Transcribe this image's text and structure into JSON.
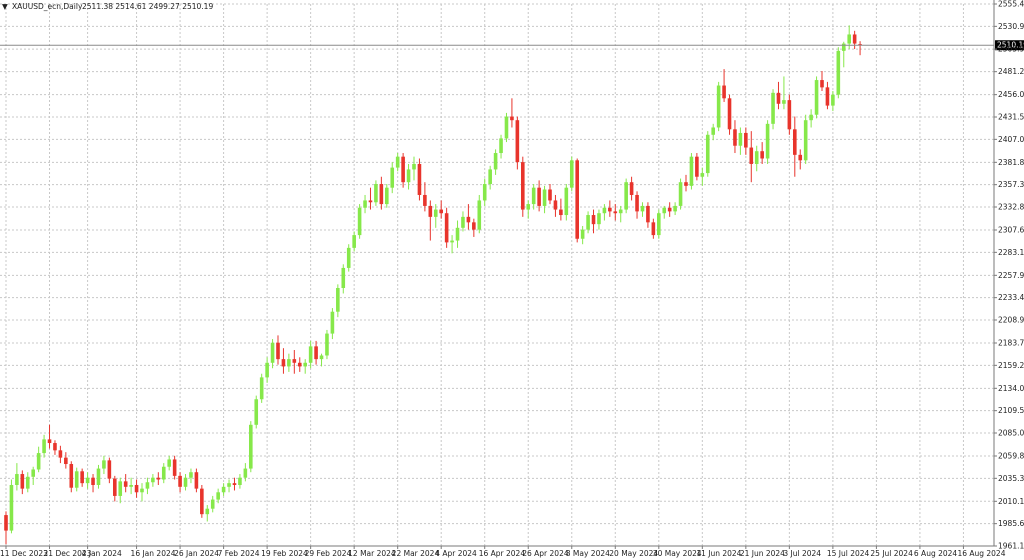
{
  "header": {
    "arrow": "▼",
    "symbol": "XAUUSD_ecn,Daily",
    "ohlc": "2511.38 2514.61 2499.27 2510.19"
  },
  "colors": {
    "bull": "#86e84a",
    "bear": "#e8342c",
    "grid": "#c8c8c8",
    "axis": "#7a7a7a",
    "price_line": "#8a8a8a",
    "tag_bg": "#000000"
  },
  "chart_data": {
    "type": "candlestick",
    "symbol": "XAUUSD_ecn",
    "timeframe": "Daily",
    "last_price": "2510.19",
    "ylim": [
      1961.1,
      2555.4
    ],
    "grid": true,
    "y_ticks": [
      "2555.40",
      "2530.90",
      "2505.90",
      "2481.20",
      "2456.00",
      "2431.50",
      "2407.00",
      "2381.80",
      "2357.30",
      "2332.80",
      "2307.60",
      "2283.10",
      "2257.90",
      "2233.40",
      "2208.90",
      "2183.70",
      "2159.20",
      "2134.00",
      "2109.50",
      "2085.00",
      "2059.80",
      "2035.30",
      "2010.10",
      "1985.60",
      "1961.10"
    ],
    "x_ticks": [
      {
        "label": "11 Dec 2023",
        "index": 0
      },
      {
        "label": "21 Dec 2023",
        "index": 8
      },
      {
        "label": "4 Jan 2024",
        "index": 15
      },
      {
        "label": "16 Jan 2024",
        "index": 24
      },
      {
        "label": "26 Jan 2024",
        "index": 32
      },
      {
        "label": "7 Feb 2024",
        "index": 40
      },
      {
        "label": "19 Feb 2024",
        "index": 48
      },
      {
        "label": "29 Feb 2024",
        "index": 56
      },
      {
        "label": "12 Mar 2024",
        "index": 64
      },
      {
        "label": "22 Mar 2024",
        "index": 72
      },
      {
        "label": "4 Apr 2024",
        "index": 80
      },
      {
        "label": "16 Apr 2024",
        "index": 88
      },
      {
        "label": "26 Apr 2024",
        "index": 96
      },
      {
        "label": "8 May 2024",
        "index": 104
      },
      {
        "label": "20 May 2024",
        "index": 112
      },
      {
        "label": "30 May 2024",
        "index": 120
      },
      {
        "label": "11 Jun 2024",
        "index": 128
      },
      {
        "label": "21 Jun 2024",
        "index": 136
      },
      {
        "label": "3 Jul 2024",
        "index": 144
      },
      {
        "label": "15 Jul 2024",
        "index": 152
      },
      {
        "label": "25 Jul 2024",
        "index": 160
      },
      {
        "label": "6 Aug 2024",
        "index": 168
      },
      {
        "label": "16 Aug 2024",
        "index": 176
      }
    ],
    "candles": [
      [
        1995,
        1999,
        1963,
        1978
      ],
      [
        1978,
        2034,
        1975,
        2028
      ],
      [
        2028,
        2052,
        2022,
        2040
      ],
      [
        2040,
        2044,
        2018,
        2024
      ],
      [
        2024,
        2042,
        2020,
        2037
      ],
      [
        2037,
        2048,
        2028,
        2045
      ],
      [
        2045,
        2070,
        2042,
        2063
      ],
      [
        2063,
        2083,
        2058,
        2078
      ],
      [
        2078,
        2094,
        2068,
        2074
      ],
      [
        2074,
        2077,
        2061,
        2066
      ],
      [
        2066,
        2071,
        2052,
        2058
      ],
      [
        2058,
        2064,
        2046,
        2051
      ],
      [
        2051,
        2054,
        2020,
        2025
      ],
      [
        2025,
        2047,
        2021,
        2043
      ],
      [
        2043,
        2046,
        2026,
        2030
      ],
      [
        2030,
        2042,
        2024,
        2036
      ],
      [
        2036,
        2040,
        2020,
        2028
      ],
      [
        2028,
        2050,
        2024,
        2046
      ],
      [
        2046,
        2060,
        2040,
        2055
      ],
      [
        2055,
        2058,
        2030,
        2035
      ],
      [
        2035,
        2038,
        2010,
        2016
      ],
      [
        2016,
        2036,
        2008,
        2032
      ],
      [
        2032,
        2040,
        2020,
        2026
      ],
      [
        2026,
        2036,
        2018,
        2028
      ],
      [
        2028,
        2034,
        2014,
        2020
      ],
      [
        2020,
        2030,
        2010,
        2024
      ],
      [
        2024,
        2036,
        2018,
        2031
      ],
      [
        2031,
        2040,
        2026,
        2036
      ],
      [
        2036,
        2042,
        2028,
        2034
      ],
      [
        2034,
        2052,
        2030,
        2048
      ],
      [
        2048,
        2060,
        2044,
        2056
      ],
      [
        2056,
        2060,
        2034,
        2038
      ],
      [
        2038,
        2042,
        2020,
        2026
      ],
      [
        2026,
        2040,
        2022,
        2036
      ],
      [
        2036,
        2046,
        2030,
        2042
      ],
      [
        2042,
        2046,
        2020,
        2024
      ],
      [
        2024,
        2028,
        1992,
        1996
      ],
      [
        1996,
        2006,
        1988,
        2002
      ],
      [
        2002,
        2016,
        1998,
        2012
      ],
      [
        2012,
        2024,
        2008,
        2020
      ],
      [
        2020,
        2030,
        2016,
        2026
      ],
      [
        2026,
        2034,
        2020,
        2030
      ],
      [
        2030,
        2036,
        2022,
        2028
      ],
      [
        2028,
        2040,
        2024,
        2036
      ],
      [
        2036,
        2052,
        2032,
        2046
      ],
      [
        2046,
        2098,
        2042,
        2094
      ],
      [
        2094,
        2126,
        2090,
        2122
      ],
      [
        2122,
        2150,
        2118,
        2146
      ],
      [
        2146,
        2168,
        2140,
        2162
      ],
      [
        2162,
        2188,
        2156,
        2184
      ],
      [
        2184,
        2192,
        2160,
        2166
      ],
      [
        2166,
        2178,
        2150,
        2158
      ],
      [
        2158,
        2172,
        2152,
        2166
      ],
      [
        2166,
        2176,
        2150,
        2162
      ],
      [
        2162,
        2168,
        2152,
        2158
      ],
      [
        2158,
        2166,
        2150,
        2162
      ],
      [
        2162,
        2186,
        2156,
        2180
      ],
      [
        2180,
        2186,
        2160,
        2166
      ],
      [
        2166,
        2172,
        2158,
        2170
      ],
      [
        2170,
        2198,
        2166,
        2194
      ],
      [
        2194,
        2222,
        2188,
        2218
      ],
      [
        2218,
        2248,
        2212,
        2244
      ],
      [
        2244,
        2270,
        2238,
        2266
      ],
      [
        2266,
        2292,
        2262,
        2288
      ],
      [
        2288,
        2306,
        2284,
        2302
      ],
      [
        2302,
        2336,
        2298,
        2332
      ],
      [
        2332,
        2346,
        2326,
        2340
      ],
      [
        2340,
        2354,
        2330,
        2338
      ],
      [
        2338,
        2362,
        2334,
        2358
      ],
      [
        2358,
        2366,
        2330,
        2336
      ],
      [
        2336,
        2358,
        2332,
        2354
      ],
      [
        2354,
        2382,
        2348,
        2376
      ],
      [
        2376,
        2392,
        2372,
        2388
      ],
      [
        2388,
        2392,
        2354,
        2360
      ],
      [
        2360,
        2380,
        2352,
        2374
      ],
      [
        2374,
        2388,
        2362,
        2380
      ],
      [
        2380,
        2386,
        2340,
        2346
      ],
      [
        2346,
        2360,
        2328,
        2334
      ],
      [
        2334,
        2340,
        2296,
        2322
      ],
      [
        2322,
        2336,
        2310,
        2330
      ],
      [
        2330,
        2340,
        2320,
        2326
      ],
      [
        2326,
        2332,
        2288,
        2294
      ],
      [
        2294,
        2302,
        2282,
        2296
      ],
      [
        2296,
        2318,
        2288,
        2310
      ],
      [
        2310,
        2328,
        2306,
        2322
      ],
      [
        2322,
        2336,
        2308,
        2316
      ],
      [
        2316,
        2320,
        2300,
        2308
      ],
      [
        2308,
        2346,
        2304,
        2340
      ],
      [
        2340,
        2364,
        2334,
        2358
      ],
      [
        2358,
        2378,
        2352,
        2374
      ],
      [
        2374,
        2396,
        2368,
        2392
      ],
      [
        2392,
        2412,
        2386,
        2408
      ],
      [
        2408,
        2436,
        2404,
        2432
      ],
      [
        2432,
        2452,
        2420,
        2428
      ],
      [
        2428,
        2432,
        2374,
        2382
      ],
      [
        2382,
        2388,
        2322,
        2330
      ],
      [
        2330,
        2340,
        2320,
        2336
      ],
      [
        2336,
        2358,
        2330,
        2354
      ],
      [
        2354,
        2362,
        2328,
        2334
      ],
      [
        2334,
        2356,
        2326,
        2352
      ],
      [
        2352,
        2358,
        2336,
        2340
      ],
      [
        2340,
        2346,
        2322,
        2330
      ],
      [
        2330,
        2342,
        2318,
        2324
      ],
      [
        2324,
        2358,
        2318,
        2354
      ],
      [
        2354,
        2388,
        2350,
        2384
      ],
      [
        2384,
        2386,
        2294,
        2298
      ],
      [
        2298,
        2312,
        2292,
        2308
      ],
      [
        2308,
        2328,
        2304,
        2324
      ],
      [
        2324,
        2330,
        2304,
        2314
      ],
      [
        2314,
        2330,
        2308,
        2326
      ],
      [
        2326,
        2336,
        2318,
        2332
      ],
      [
        2332,
        2340,
        2322,
        2328
      ],
      [
        2328,
        2336,
        2318,
        2326
      ],
      [
        2326,
        2334,
        2316,
        2330
      ],
      [
        2330,
        2364,
        2326,
        2360
      ],
      [
        2360,
        2366,
        2340,
        2346
      ],
      [
        2346,
        2350,
        2320,
        2328
      ],
      [
        2328,
        2338,
        2322,
        2334
      ],
      [
        2334,
        2338,
        2310,
        2316
      ],
      [
        2316,
        2320,
        2298,
        2302
      ],
      [
        2302,
        2330,
        2298,
        2326
      ],
      [
        2326,
        2334,
        2320,
        2332
      ],
      [
        2332,
        2338,
        2322,
        2328
      ],
      [
        2328,
        2338,
        2324,
        2334
      ],
      [
        2334,
        2364,
        2330,
        2360
      ],
      [
        2360,
        2368,
        2350,
        2356
      ],
      [
        2356,
        2392,
        2352,
        2388
      ],
      [
        2388,
        2392,
        2362,
        2366
      ],
      [
        2366,
        2376,
        2356,
        2370
      ],
      [
        2370,
        2416,
        2366,
        2412
      ],
      [
        2412,
        2424,
        2406,
        2420
      ],
      [
        2420,
        2470,
        2416,
        2466
      ],
      [
        2466,
        2484,
        2448,
        2452
      ],
      [
        2452,
        2456,
        2412,
        2418
      ],
      [
        2418,
        2428,
        2392,
        2400
      ],
      [
        2400,
        2420,
        2390,
        2414
      ],
      [
        2414,
        2420,
        2390,
        2398
      ],
      [
        2398,
        2416,
        2360,
        2380
      ],
      [
        2380,
        2400,
        2372,
        2394
      ],
      [
        2394,
        2404,
        2380,
        2386
      ],
      [
        2386,
        2428,
        2380,
        2424
      ],
      [
        2424,
        2462,
        2418,
        2458
      ],
      [
        2458,
        2470,
        2440,
        2446
      ],
      [
        2446,
        2476,
        2440,
        2450
      ],
      [
        2450,
        2456,
        2412,
        2418
      ],
      [
        2418,
        2432,
        2366,
        2390
      ],
      [
        2390,
        2396,
        2374,
        2384
      ],
      [
        2384,
        2434,
        2380,
        2428
      ],
      [
        2428,
        2440,
        2420,
        2434
      ],
      [
        2434,
        2476,
        2430,
        2472
      ],
      [
        2472,
        2482,
        2460,
        2464
      ],
      [
        2464,
        2470,
        2440,
        2444
      ],
      [
        2444,
        2460,
        2438,
        2456
      ],
      [
        2456,
        2508,
        2452,
        2504
      ],
      [
        2504,
        2514,
        2486,
        2512
      ],
      [
        2512,
        2532,
        2506,
        2522
      ],
      [
        2522,
        2526,
        2506,
        2512
      ],
      [
        2511.38,
        2514.61,
        2499.27,
        2510.19
      ]
    ]
  }
}
